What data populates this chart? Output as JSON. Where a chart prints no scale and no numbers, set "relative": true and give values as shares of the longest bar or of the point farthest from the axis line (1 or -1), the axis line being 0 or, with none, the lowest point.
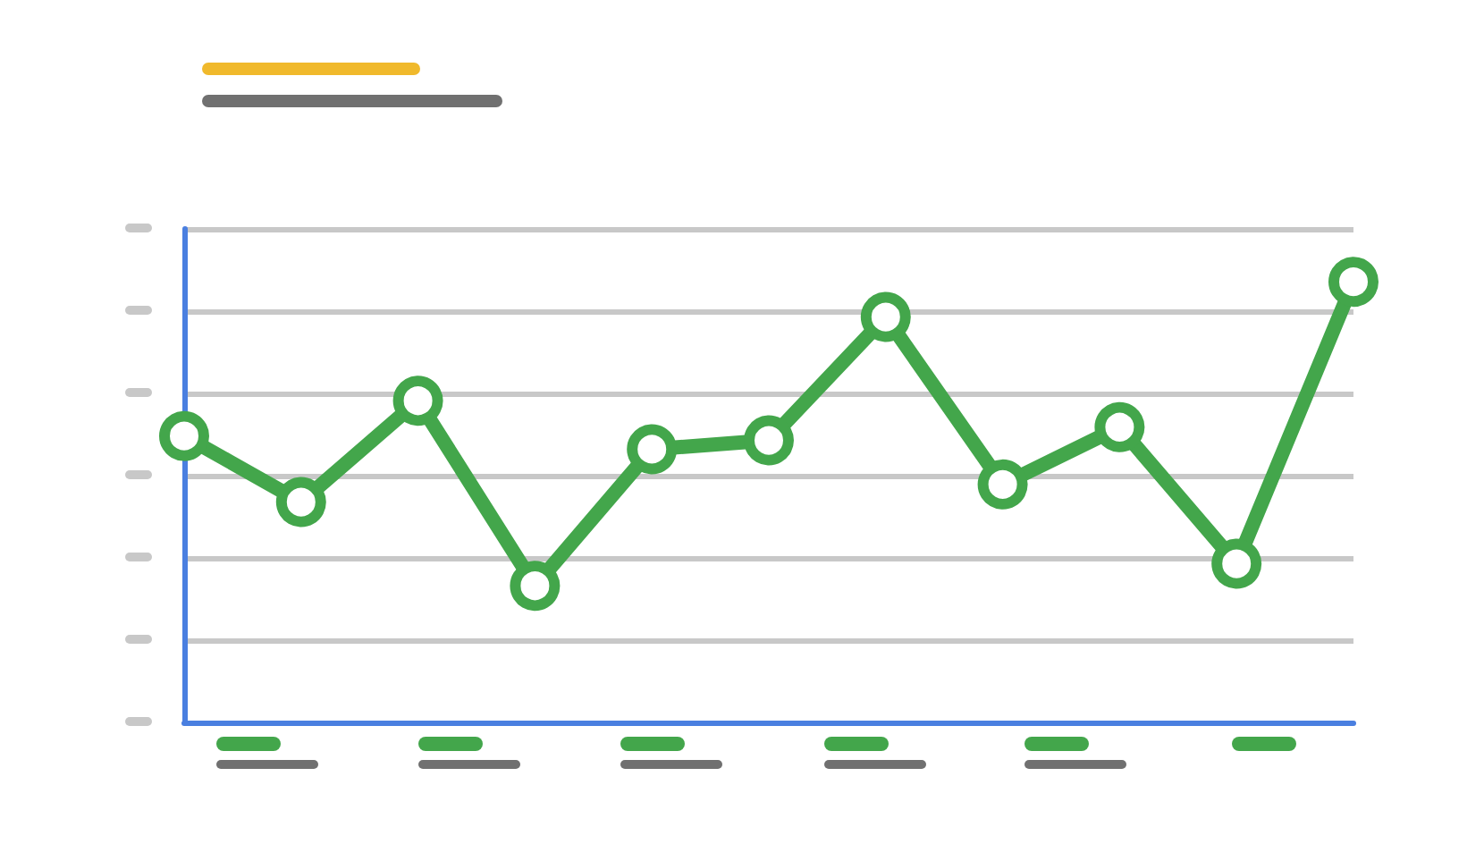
{
  "chart_data": {
    "type": "line",
    "relative": true,
    "categories": [
      null,
      null,
      null,
      null,
      null,
      null,
      null,
      null,
      null,
      null,
      null
    ],
    "series": [
      {
        "color": "#43a64b",
        "values": [
          0.65,
          0.5,
          0.73,
          0.31,
          0.62,
          0.64,
          0.92,
          0.54,
          0.67,
          0.36,
          1.0
        ]
      }
    ],
    "grid": "y",
    "marker": "circle",
    "line_style": "solid"
  }
}
